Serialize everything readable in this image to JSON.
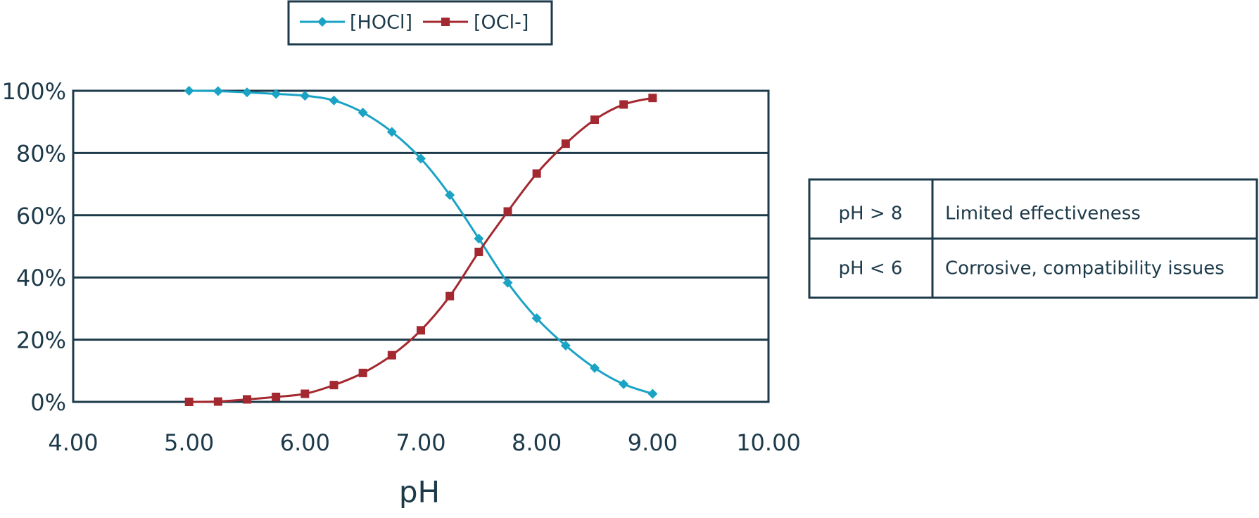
{
  "chart_data": {
    "type": "line",
    "x": [
      5.0,
      5.25,
      5.5,
      5.75,
      6.0,
      6.25,
      6.5,
      6.75,
      7.0,
      7.25,
      7.5,
      7.75,
      8.0,
      8.25,
      8.5,
      8.75,
      9.0
    ],
    "series": [
      {
        "name": "[HOCl]",
        "color": "#1aa3c4",
        "marker": "diamond",
        "values": [
          100,
          99.9,
          99.5,
          99,
          98.4,
          96.9,
          93,
          86.8,
          78.2,
          66.5,
          52.5,
          38.3,
          26.9,
          18.1,
          10.9,
          5.7,
          2.6
        ]
      },
      {
        "name": "[OCl-]",
        "color": "#a3282f",
        "marker": "square",
        "values": [
          0,
          0.1,
          0.8,
          1.6,
          2.6,
          5.4,
          9.3,
          15,
          23,
          34,
          48.2,
          61.2,
          73.4,
          83,
          90.7,
          95.6,
          97.7
        ]
      }
    ],
    "xlabel": "pH",
    "xlim": [
      4,
      10
    ],
    "xticks": [
      {
        "value": 4,
        "label": "4.00"
      },
      {
        "value": 5,
        "label": "5.00"
      },
      {
        "value": 6,
        "label": "6.00"
      },
      {
        "value": 7,
        "label": "7.00"
      },
      {
        "value": 8,
        "label": "8.00"
      },
      {
        "value": 9,
        "label": "9.00"
      },
      {
        "value": 10,
        "label": "10.00"
      }
    ],
    "ylim": [
      0,
      100
    ],
    "yticks": [
      {
        "value": 0,
        "label": "0%"
      },
      {
        "value": 20,
        "label": "20%"
      },
      {
        "value": 40,
        "label": "40%"
      },
      {
        "value": 60,
        "label": "60%"
      },
      {
        "value": 80,
        "label": "80%"
      },
      {
        "value": 100,
        "label": "100%"
      }
    ],
    "grid": true,
    "legend": "top"
  },
  "table": {
    "rows": [
      [
        "pH > 8",
        "Limited effectiveness"
      ],
      [
        "pH < 6",
        "Corrosive, compatibility issues"
      ]
    ]
  }
}
